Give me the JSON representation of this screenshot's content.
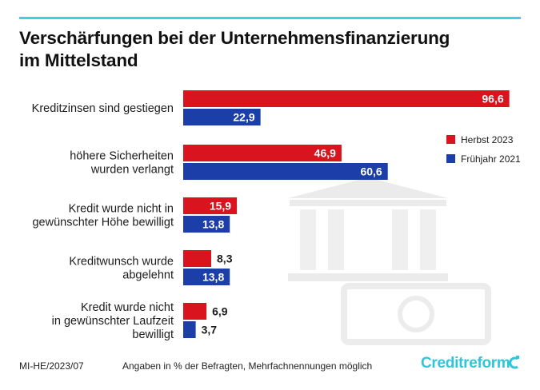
{
  "header": {
    "title_line1": "Verschärfungen bei der Unternehmensfinanzierung",
    "title_line2": "im Mittelstand"
  },
  "colors": {
    "accent": "#3fd0e2",
    "herbst": "#d9141e",
    "fruehjahr": "#1b3ea8",
    "watermark": "#e7e7e7"
  },
  "chart_data": {
    "type": "bar",
    "orientation": "horizontal",
    "categories": [
      [
        "Kreditzinsen sind gestiegen"
      ],
      [
        "höhere Sicherheiten",
        "wurden verlangt"
      ],
      [
        "Kredit wurde nicht in",
        "gewünschter Höhe bewilligt"
      ],
      [
        "Kreditwunsch wurde",
        "abgelehnt"
      ],
      [
        "Kredit wurde nicht",
        "in gewünschter Laufzeit",
        "bewilligt"
      ]
    ],
    "series": [
      {
        "name": "Herbst 2023",
        "values": [
          96.6,
          46.9,
          15.9,
          8.3,
          6.9
        ],
        "labels": [
          "96,6",
          "46,9",
          "15,9",
          "8,3",
          "6,9"
        ]
      },
      {
        "name": "Frühjahr 2021",
        "values": [
          22.9,
          60.6,
          13.8,
          13.8,
          3.7
        ],
        "labels": [
          "22,9",
          "60,6",
          "13,8",
          "13,8",
          "3,7"
        ]
      }
    ],
    "xlim": [
      0,
      100
    ],
    "grid": false,
    "legend_position": "right"
  },
  "footer": {
    "code": "MI-HE/2023/07",
    "note": "Angaben in % der Befragten,  Mehrfachnennungen möglich",
    "brand": "Creditreform"
  }
}
